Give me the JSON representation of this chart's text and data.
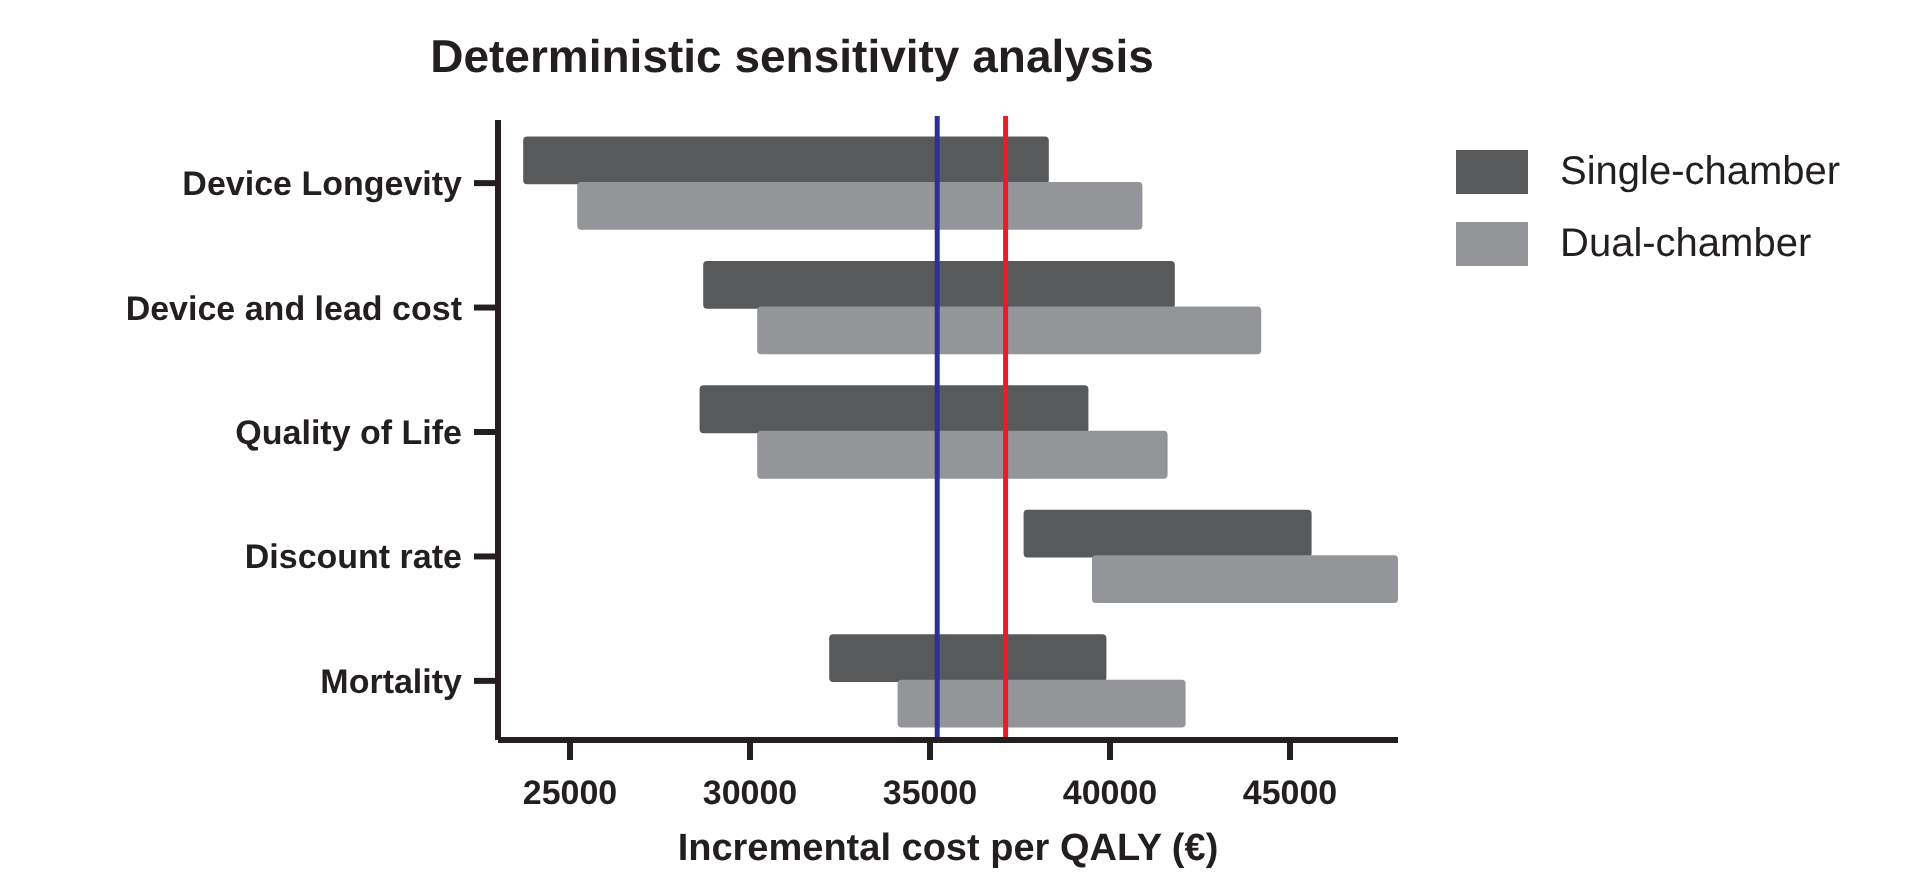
{
  "chart_data": {
    "type": "bar",
    "orientation": "horizontal",
    "title": "Deterministic sensitivity analysis",
    "xlabel": "Incremental cost per QALY (€)",
    "categories": [
      "Device Longevity",
      "Device and lead cost",
      "Quality of Life",
      "Discount rate",
      "Mortality"
    ],
    "series": [
      {
        "name": "Single-chamber",
        "color": "#58595b",
        "base": [
          23700,
          28700,
          28600,
          37600,
          32200
        ],
        "values": [
          14600,
          13100,
          10800,
          8000,
          7700
        ]
      },
      {
        "name": "Dual-chamber",
        "color": "#939598",
        "base": [
          25200,
          30200,
          30200,
          39500,
          34100
        ],
        "values": [
          15700,
          14000,
          11400,
          8500,
          8000
        ]
      }
    ],
    "xlim": [
      23000,
      48000
    ],
    "xticks": [
      25000,
      30000,
      35000,
      40000,
      45000
    ],
    "ref_lines": [
      {
        "axis": "x",
        "value": 35200,
        "color": "#2e3192"
      },
      {
        "axis": "x",
        "value": 37100,
        "color": "#ed1c24"
      }
    ],
    "legend": "top right",
    "grid": false
  }
}
